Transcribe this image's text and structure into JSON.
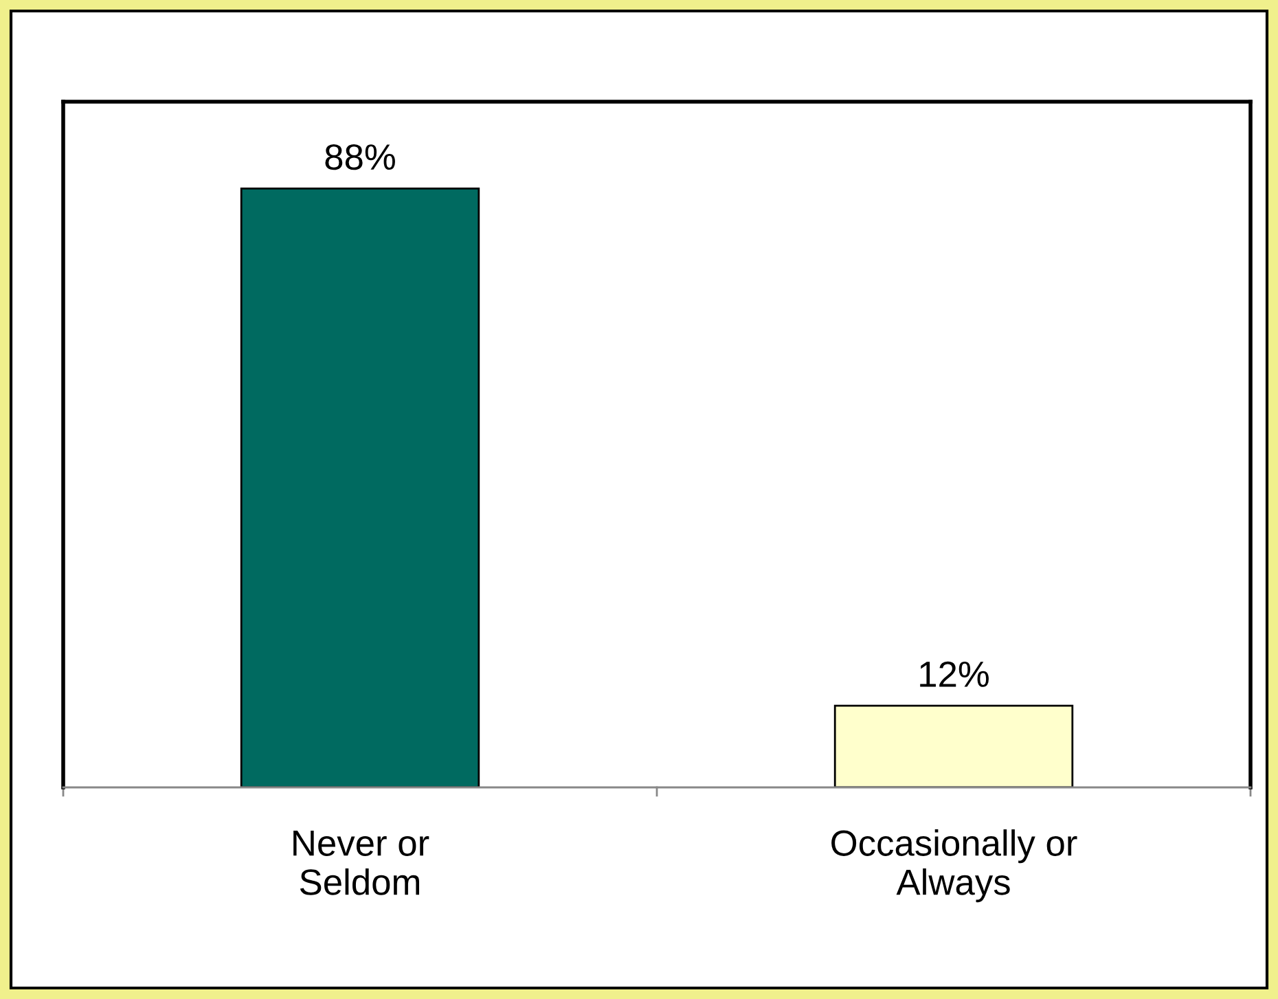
{
  "chart_data": {
    "type": "bar",
    "categories": [
      "Never or\nSeldom",
      "Occasionally or\nAlways"
    ],
    "values": [
      88,
      12
    ],
    "value_labels": [
      "88%",
      "12%"
    ],
    "colors": [
      "#006a60",
      "#ffffcc"
    ],
    "tick_labels": "x"
  }
}
